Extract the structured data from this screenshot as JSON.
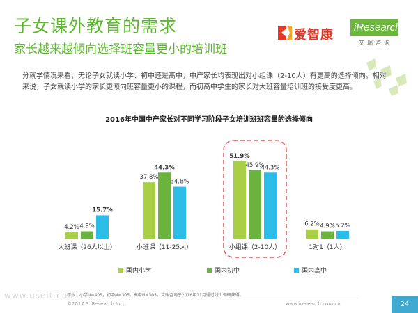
{
  "header": {
    "title": "子女课外教育的需求",
    "subtitle": "家长越来越倾向选择班容量更小的培训班"
  },
  "logos": {
    "aizhikang": "爱智康",
    "iresearch": "iResearch",
    "iresearch_cn": "艾瑞咨询"
  },
  "description": "分就学情况来看，无论子女就读小学、初中还是高中，中产家长均表现出对小组课（2-10人）有更高的选择倾向。相对来说，子女就读小学的家长更倾向班容量更小的课程，而初高中学生的家长对大班容量培训班的接受度更高。",
  "chart_data": {
    "type": "bar",
    "title": "2016年中国中产家长对不同学习阶段子女培训班班容量的选择倾向",
    "categories": [
      "大班课（26人以上）",
      "小班课（11-25人）",
      "小组课（2-10人）",
      "1对1（1人）"
    ],
    "series": [
      {
        "name": "国内小学",
        "color": "#a9cf46",
        "values": [
          4.2,
          37.8,
          51.9,
          6.2
        ]
      },
      {
        "name": "国内初中",
        "color": "#6ab33f",
        "values": [
          4.9,
          44.3,
          45.9,
          4.9
        ]
      },
      {
        "name": "国内高中",
        "color": "#2bbde8",
        "values": [
          15.7,
          34.8,
          44.3,
          5.2
        ]
      }
    ],
    "unit": "%",
    "bold_values": [
      [
        2,
        0
      ],
      [
        1,
        1
      ],
      [
        0,
        2
      ]
    ],
    "highlight_category": 2,
    "highlight_color": "#e05a5a",
    "ylim": [
      0,
      55
    ],
    "grid": false,
    "legend_position": "bottom"
  },
  "footer": {
    "note": "样本：小学N=405，初中N=305，高中N=305，艾瑞咨询于2016年11月通过线上调研获得。",
    "copyright": "©2017.3  iResearch Inc.",
    "url": "www.iresearch.com.cn",
    "page": "24",
    "watermark": "www.useit.com.cn"
  }
}
